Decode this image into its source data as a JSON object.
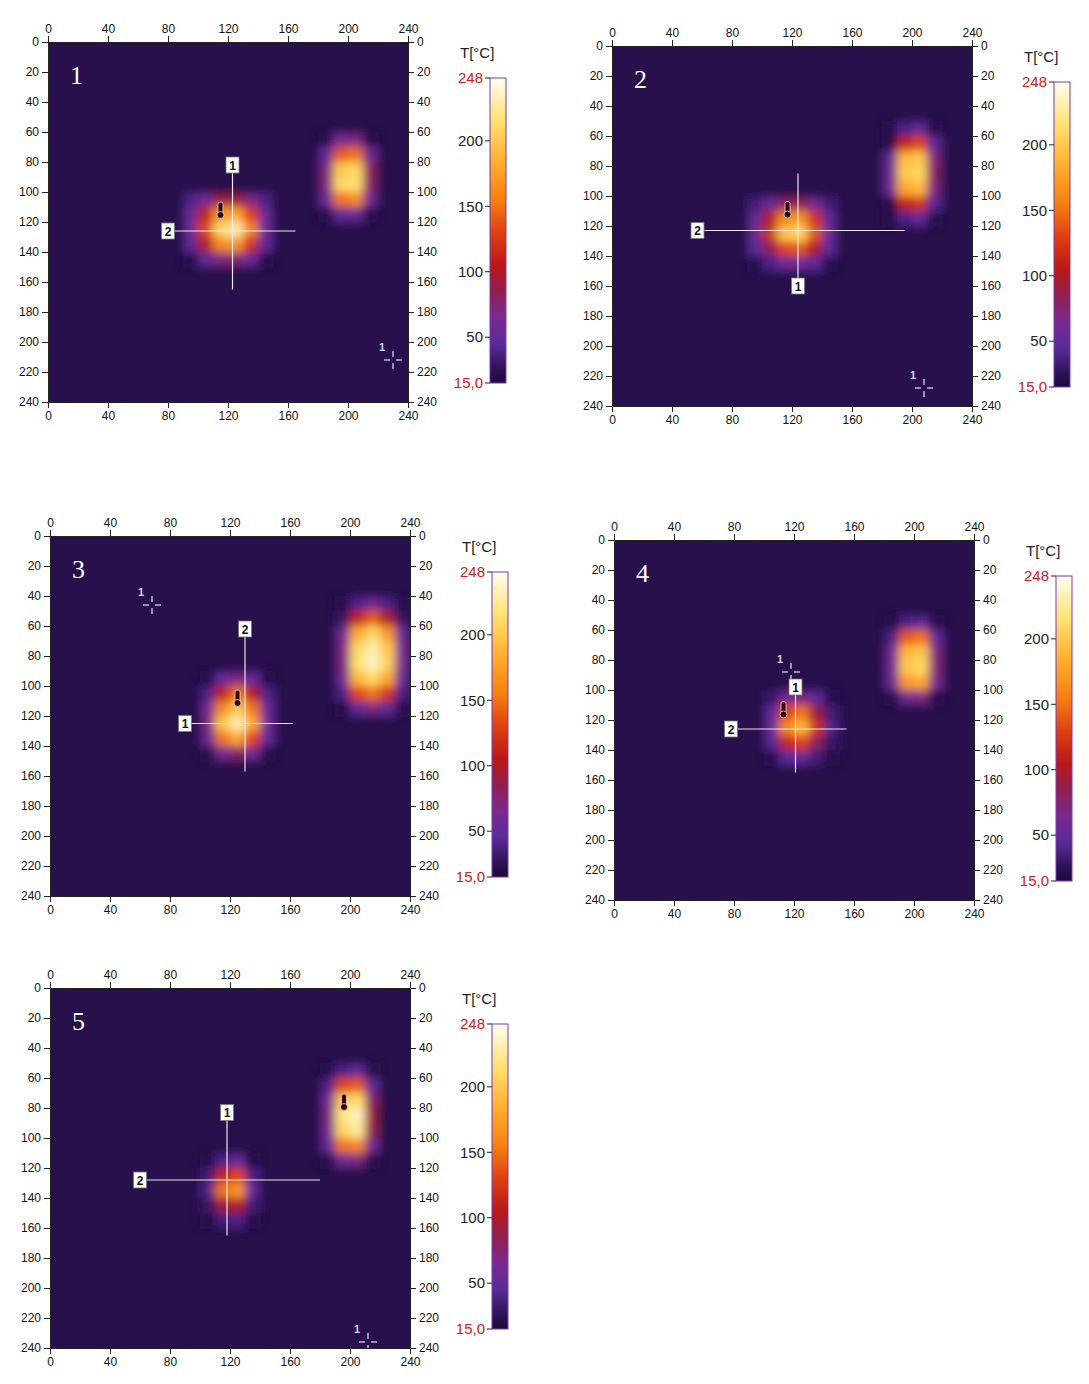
{
  "chart_data": [
    {
      "type": "heatmap",
      "title": "1",
      "xlim": [
        0,
        240
      ],
      "ylim": [
        0,
        240
      ],
      "xticks": [
        0,
        40,
        80,
        120,
        160,
        200,
        240
      ],
      "yticks": [
        0,
        20,
        40,
        60,
        80,
        100,
        120,
        140,
        160,
        180,
        200,
        220,
        240
      ],
      "background": 22,
      "cell_size": 10,
      "spots": [
        {
          "x0": 90,
          "y0": 100,
          "rows": [
            [
              40,
              60,
              90,
              95,
              70,
              40
            ],
            [
              55,
              110,
              170,
              180,
              130,
              55
            ],
            [
              60,
              130,
              210,
              230,
              160,
              60
            ],
            [
              50,
              100,
              160,
              170,
              120,
              50
            ],
            [
              22,
              50,
              70,
              75,
              55,
              22
            ]
          ]
        },
        {
          "x0": 180,
          "y0": 60,
          "rows": [
            [
              22,
              60,
              70,
              22
            ],
            [
              50,
              140,
              150,
              60
            ],
            [
              70,
              200,
              210,
              80
            ],
            [
              70,
              210,
              215,
              80
            ],
            [
              55,
              150,
              160,
              60
            ],
            [
              22,
              50,
              55,
              22
            ]
          ]
        }
      ],
      "colorbar": {
        "label": "T[°C]",
        "range": [
          15,
          248
        ],
        "ticks": [
          {
            "value": 15,
            "label": "15,0"
          },
          50,
          100,
          150,
          200,
          248
        ]
      },
      "cursors": [
        {
          "label": "1",
          "direction": "vertical",
          "at": 123,
          "from": 82,
          "to": 165
        },
        {
          "label": "2",
          "direction": "horizontal",
          "at": 126,
          "from": 80,
          "to": 165
        }
      ],
      "max_marker": {
        "x": 115,
        "y": 116
      },
      "min_marker": {
        "label": "1",
        "x": 230,
        "y": 212
      }
    },
    {
      "type": "heatmap",
      "title": "2",
      "xlim": [
        0,
        240
      ],
      "ylim": [
        0,
        240
      ],
      "xticks": [
        0,
        40,
        80,
        120,
        160,
        200,
        240
      ],
      "yticks": [
        0,
        20,
        40,
        60,
        80,
        100,
        120,
        140,
        160,
        180,
        200,
        220,
        240
      ],
      "background": 22,
      "cell_size": 10,
      "spots": [
        {
          "x0": 90,
          "y0": 100,
          "rows": [
            [
              35,
              55,
              80,
              85,
              60,
              35
            ],
            [
              50,
              100,
              160,
              170,
              120,
              50
            ],
            [
              55,
              120,
              200,
              210,
              140,
              55
            ],
            [
              45,
              80,
              130,
              140,
              100,
              45
            ],
            [
              22,
              40,
              55,
              60,
              45,
              22
            ]
          ]
        },
        {
          "x0": 180,
          "y0": 50,
          "rows": [
            [
              22,
              40,
              50,
              22
            ],
            [
              22,
              110,
              130,
              50
            ],
            [
              50,
              190,
              200,
              70
            ],
            [
              60,
              200,
              210,
              80
            ],
            [
              55,
              180,
              190,
              70
            ],
            [
              22,
              110,
              120,
              45
            ],
            [
              22,
              40,
              50,
              22
            ]
          ]
        }
      ],
      "colorbar": {
        "label": "T[°C]",
        "range": [
          15,
          248
        ],
        "ticks": [
          {
            "value": 15,
            "label": "15,0"
          },
          50,
          100,
          150,
          200,
          248
        ]
      },
      "cursors": [
        {
          "label": "1",
          "direction": "vertical",
          "at": 124,
          "from": 160,
          "to": 85
        },
        {
          "label": "2",
          "direction": "horizontal",
          "at": 123,
          "from": 57,
          "to": 195
        }
      ],
      "max_marker": {
        "x": 117,
        "y": 113
      },
      "min_marker": {
        "label": "1",
        "x": 208,
        "y": 228
      }
    },
    {
      "type": "heatmap",
      "title": "3",
      "xlim": [
        0,
        240
      ],
      "ylim": [
        0,
        240
      ],
      "xticks": [
        0,
        40,
        80,
        120,
        160,
        200,
        240
      ],
      "yticks": [
        0,
        20,
        40,
        60,
        80,
        100,
        120,
        140,
        160,
        180,
        200,
        220,
        240
      ],
      "background": 22,
      "cell_size": 10,
      "spots": [
        {
          "x0": 100,
          "y0": 90,
          "rows": [
            [
              22,
              50,
              70,
              50,
              22
            ],
            [
              40,
              110,
              150,
              100,
              40
            ],
            [
              60,
              160,
              200,
              150,
              55
            ],
            [
              70,
              200,
              230,
              180,
              60
            ],
            [
              55,
              150,
              180,
              130,
              50
            ],
            [
              22,
              60,
              80,
              60,
              22
            ]
          ]
        },
        {
          "x0": 190,
          "y0": 40,
          "rows": [
            [
              22,
              40,
              60,
              40,
              22
            ],
            [
              30,
              110,
              140,
              100,
              30
            ],
            [
              60,
              180,
              210,
              170,
              55
            ],
            [
              70,
              210,
              230,
              200,
              65
            ],
            [
              70,
              215,
              235,
              205,
              65
            ],
            [
              60,
              190,
              210,
              180,
              55
            ],
            [
              40,
              130,
              150,
              120,
              40
            ],
            [
              22,
              50,
              70,
              50,
              22
            ]
          ]
        }
      ],
      "colorbar": {
        "label": "T[°C]",
        "range": [
          15,
          248
        ],
        "ticks": [
          {
            "value": 15,
            "label": "15,0"
          },
          50,
          100,
          150,
          200,
          248
        ]
      },
      "cursors": [
        {
          "label": "2",
          "direction": "vertical",
          "at": 130,
          "from": 62,
          "to": 157
        },
        {
          "label": "1",
          "direction": "horizontal",
          "at": 125,
          "from": 90,
          "to": 162
        }
      ],
      "max_marker": {
        "x": 125,
        "y": 112
      },
      "min_marker": {
        "label": "1",
        "x": 68,
        "y": 46
      }
    },
    {
      "type": "heatmap",
      "title": "4",
      "xlim": [
        0,
        240
      ],
      "ylim": [
        0,
        240
      ],
      "xticks": [
        0,
        40,
        80,
        120,
        160,
        200,
        240
      ],
      "yticks": [
        0,
        20,
        40,
        60,
        80,
        100,
        120,
        140,
        160,
        180,
        200,
        220,
        240
      ],
      "background": 22,
      "cell_size": 10,
      "spots": [
        {
          "x0": 100,
          "y0": 100,
          "rows": [
            [
              30,
              60,
              70,
              45,
              22
            ],
            [
              50,
              130,
              150,
              90,
              35
            ],
            [
              55,
              160,
              190,
              120,
              40
            ],
            [
              45,
              110,
              130,
              80,
              30
            ],
            [
              22,
              45,
              55,
              35,
              22
            ]
          ]
        },
        {
          "x0": 180,
          "y0": 50,
          "rows": [
            [
              22,
              40,
              50,
              22
            ],
            [
              40,
              140,
              150,
              50
            ],
            [
              60,
              190,
              200,
              70
            ],
            [
              65,
              200,
              210,
              75
            ],
            [
              55,
              170,
              180,
              60
            ],
            [
              22,
              60,
              70,
              22
            ]
          ]
        }
      ],
      "colorbar": {
        "label": "T[°C]",
        "range": [
          15,
          248
        ],
        "ticks": [
          {
            "value": 15,
            "label": "15,0"
          },
          50,
          100,
          150,
          200,
          248
        ]
      },
      "cursors": [
        {
          "label": "1",
          "direction": "vertical",
          "at": 121,
          "from": 98,
          "to": 155
        },
        {
          "label": "2",
          "direction": "horizontal",
          "at": 126,
          "from": 78,
          "to": 155
        }
      ],
      "max_marker": {
        "x": 113,
        "y": 117
      },
      "min_marker": {
        "label": "1",
        "x": 118,
        "y": 88
      }
    },
    {
      "type": "heatmap",
      "title": "5",
      "xlim": [
        0,
        240
      ],
      "ylim": [
        0,
        240
      ],
      "xticks": [
        0,
        40,
        80,
        120,
        160,
        200,
        240
      ],
      "yticks": [
        0,
        20,
        40,
        60,
        80,
        100,
        120,
        140,
        160,
        180,
        200,
        220,
        240
      ],
      "background": 22,
      "cell_size": 10,
      "spots": [
        {
          "x0": 100,
          "y0": 110,
          "rows": [
            [
              22,
              40,
              50,
              22
            ],
            [
              35,
              110,
              130,
              40
            ],
            [
              40,
              150,
              170,
              50
            ],
            [
              30,
              90,
              100,
              35
            ],
            [
              22,
              35,
              40,
              22
            ]
          ]
        },
        {
          "x0": 180,
          "y0": 50,
          "rows": [
            [
              22,
              40,
              50,
              22
            ],
            [
              40,
              130,
              140,
              50
            ],
            [
              60,
              200,
              215,
              80
            ],
            [
              70,
              220,
              235,
              90
            ],
            [
              65,
              210,
              225,
              85
            ],
            [
              50,
              150,
              160,
              60
            ],
            [
              22,
              60,
              70,
              22
            ]
          ]
        }
      ],
      "colorbar": {
        "label": "T[°C]",
        "range": [
          15,
          248
        ],
        "ticks": [
          {
            "value": 15,
            "label": "15,0"
          },
          50,
          100,
          150,
          200,
          248
        ]
      },
      "cursors": [
        {
          "label": "1",
          "direction": "vertical",
          "at": 118,
          "from": 83,
          "to": 165
        },
        {
          "label": "2",
          "direction": "horizontal",
          "at": 128,
          "from": 60,
          "to": 180
        }
      ],
      "max_marker": {
        "x": 196,
        "y": 80
      },
      "min_marker": {
        "label": "1",
        "x": 212,
        "y": 236
      }
    }
  ]
}
